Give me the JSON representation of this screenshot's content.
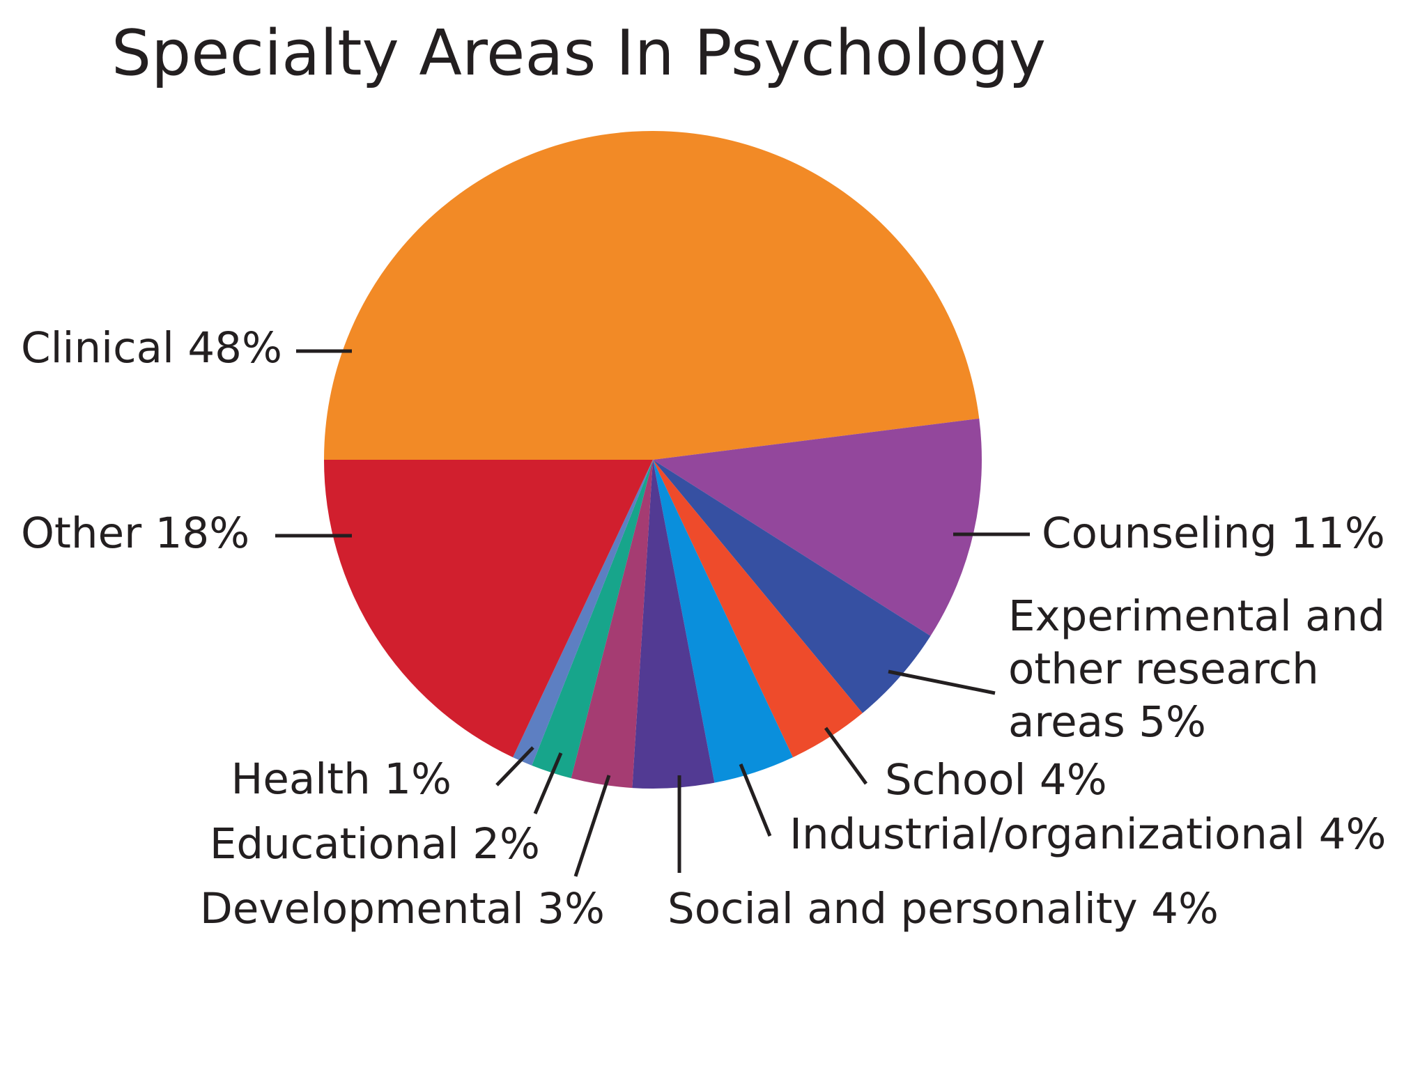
{
  "chart_data": {
    "type": "pie",
    "title": "Specialty Areas In Psychology",
    "unit": "%",
    "slices": [
      {
        "name": "Clinical",
        "value": 48,
        "color": "#f28a26",
        "label_lines": [
          "Clinical 48%"
        ]
      },
      {
        "name": "Counseling",
        "value": 11,
        "color": "#93479c",
        "label_lines": [
          "Counseling 11%"
        ]
      },
      {
        "name": "Experimental and other research areas",
        "value": 5,
        "color": "#3650a2",
        "label_lines": [
          "Experimental and",
          "other research",
          "areas 5%"
        ]
      },
      {
        "name": "School",
        "value": 4,
        "color": "#ee4b2b",
        "label_lines": [
          "School 4%"
        ]
      },
      {
        "name": "Industrial/organizational",
        "value": 4,
        "color": "#0a8fdc",
        "label_lines": [
          "Industrial/organizational 4%"
        ]
      },
      {
        "name": "Social and personality",
        "value": 4,
        "color": "#523a93",
        "label_lines": [
          "Social and personality 4%"
        ]
      },
      {
        "name": "Developmental",
        "value": 3,
        "color": "#a53c72",
        "label_lines": [
          "Developmental 3%"
        ]
      },
      {
        "name": "Educational",
        "value": 2,
        "color": "#17a58b",
        "label_lines": [
          "Educational 2%"
        ]
      },
      {
        "name": "Health",
        "value": 1,
        "color": "#5d7fc2",
        "label_lines": [
          "Health 1%"
        ]
      },
      {
        "name": "Other",
        "value": 18,
        "color": "#d11f2e",
        "label_lines": [
          "Other 18%"
        ]
      }
    ],
    "legend": "none",
    "labels": "callouts"
  }
}
